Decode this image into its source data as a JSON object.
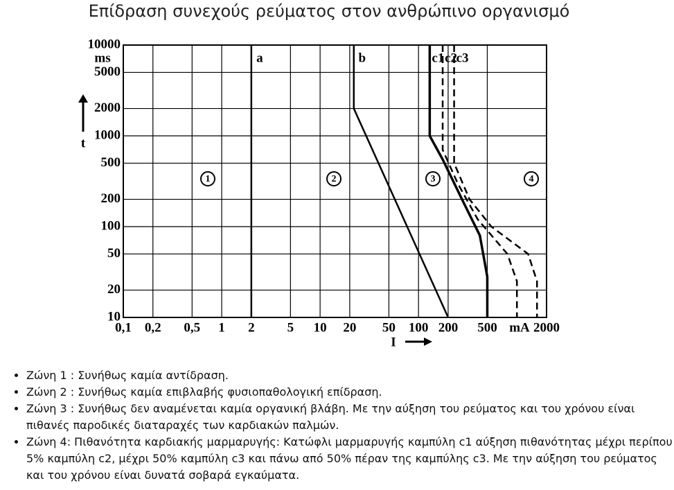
{
  "title": "Επίδραση συνεχούς ρεύματος στον ανθρώπινο οργανισμό",
  "chart_data": {
    "type": "line",
    "x_label": "I",
    "y_label": "t",
    "x_unit": "mA",
    "y_unit": "ms",
    "xlog": true,
    "ylog": true,
    "grid": true,
    "xlim": [
      0.1,
      2000
    ],
    "ylim": [
      10,
      10000
    ],
    "xticks": [
      {
        "value": 0.1,
        "label": "0,1"
      },
      {
        "value": 0.2,
        "label": "0,2"
      },
      {
        "value": 0.5,
        "label": "0,5"
      },
      1,
      2,
      5,
      10,
      20,
      50,
      100,
      200,
      500,
      2000
    ],
    "yticks": [
      10,
      20,
      50,
      100,
      200,
      500,
      1000,
      2000,
      5000,
      10000
    ],
    "zone_labels": [
      "1",
      "2",
      "3",
      "4"
    ],
    "series": [
      {
        "name": "a",
        "color": "#000000",
        "dashed": false,
        "x": [
          2,
          2
        ],
        "values": [
          10000,
          10
        ]
      },
      {
        "name": "b",
        "color": "#000000",
        "dashed": false,
        "x": [
          22,
          22,
          200
        ],
        "values": [
          10000,
          2000,
          10
        ]
      },
      {
        "name": "c1",
        "color": "#000000",
        "dashed": false,
        "x": [
          130,
          130,
          176,
          283,
          420,
          500,
          500
        ],
        "values": [
          10000,
          1000,
          550,
          190,
          80,
          28,
          10
        ]
      },
      {
        "name": "c2",
        "color": "#000000",
        "dashed": true,
        "x": [
          176,
          176,
          250,
          400,
          800,
          1000,
          1000
        ],
        "values": [
          10000,
          700,
          300,
          120,
          50,
          25,
          10
        ]
      },
      {
        "name": "c3",
        "color": "#000000",
        "dashed": true,
        "x": [
          230,
          230,
          330,
          550,
          1300,
          1600,
          1600
        ],
        "values": [
          10000,
          500,
          200,
          100,
          50,
          25,
          10
        ]
      }
    ]
  },
  "bullets": [
    "Ζώνη 1 : Συνήθως καμία αντίδραση.",
    "Ζώνη 2 : Συνήθως καμία επιβλαβής φυσιοπαθολογική επίδραση.",
    "Ζώνη 3 : Συνήθως δεν αναμένεται καμία οργανική βλάβη. Με την αύξηση του ρεύματος και του χρόνου είναι πιθανές παροδικές διαταραχές των καρδιακών παλμών.",
    "Ζώνη 4: Πιθανότητα καρδιακής μαρμαρυγής: Κατώφλι μαρμαρυγής καμπύλη c1 αύξηση πιθανότητας μέχρι περίπου 5% καμπύλη c2, μέχρι 50% καμπύλη c3 και πάνω από 50% πέραν της καμπύλης c3. Με την αύξηση του ρεύματος και του χρόνου είναι δυνατά σοβαρά εγκαύματα."
  ]
}
